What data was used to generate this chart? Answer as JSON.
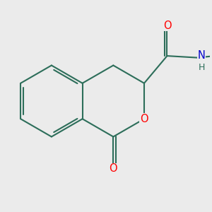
{
  "background_color": "#ebebeb",
  "bond_color": "#2d6e5a",
  "bond_width": 1.5,
  "atom_colors": {
    "O": "#ff0000",
    "N": "#0000cc",
    "H": "#2d6e5a",
    "C": "#2d6e5a"
  },
  "font_size": 10.5,
  "r": 0.72
}
